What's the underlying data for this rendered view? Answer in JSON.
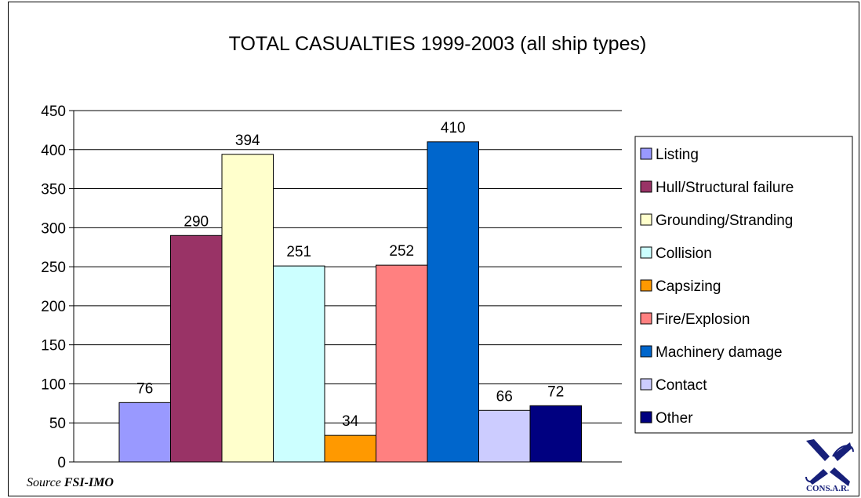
{
  "chart_data": {
    "type": "bar",
    "title": "TOTAL CASUALTIES 1999-2003 (all ship types)",
    "xlabel": "",
    "ylabel": "",
    "ylim": [
      0,
      450
    ],
    "yticks": [
      0,
      50,
      100,
      150,
      200,
      250,
      300,
      350,
      400,
      450
    ],
    "grid": true,
    "legend_position": "right",
    "categories": [
      "Listing",
      "Hull/Structural failure",
      "Grounding/Stranding",
      "Collision",
      "Capsizing",
      "Fire/Explosion",
      "Machinery damage",
      "Contact",
      "Other"
    ],
    "values": [
      76,
      290,
      394,
      251,
      34,
      252,
      410,
      66,
      72
    ],
    "colors": [
      "#9999ff",
      "#993366",
      "#ffffcc",
      "#ccffff",
      "#ff9900",
      "#ff8080",
      "#0066cc",
      "#ccccff",
      "#000080"
    ]
  },
  "footer": {
    "source_prefix": "Source",
    "source_name": "FSI-IMO"
  },
  "logo": {
    "text": "CONS.A.R."
  }
}
